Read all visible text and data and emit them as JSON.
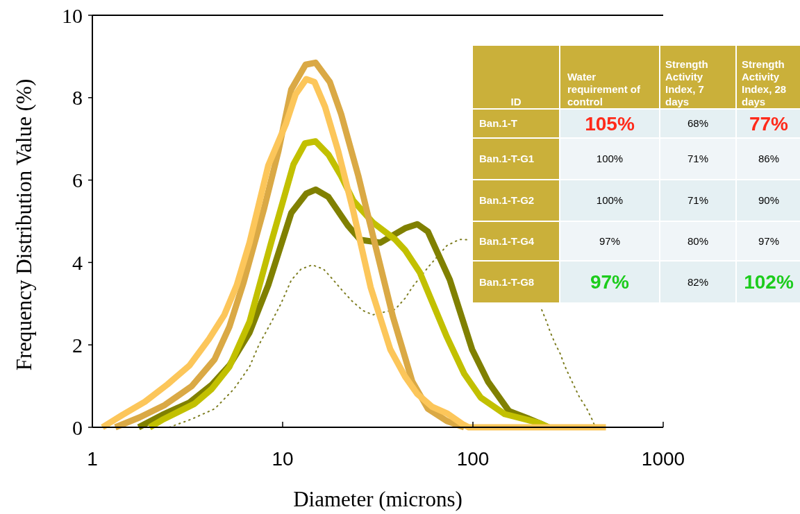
{
  "chart_data": [
    {
      "type": "line",
      "xlabel": "Diameter (microns)",
      "ylabel": "Frequency Distribution Value (%)",
      "log": "x",
      "grid": false,
      "xlim": [
        1,
        1000
      ],
      "xticks": [
        1,
        10,
        100,
        1000
      ],
      "ylim": [
        0,
        10
      ],
      "yticks": [
        0,
        2,
        4,
        6,
        8,
        10
      ],
      "series": [
        {
          "color": "#7d7d20",
          "line_style": "dotted",
          "x": [
            2.54,
            3.33,
            4.4,
            5.55,
            6.7,
            7.5,
            8.6,
            9.8,
            11.1,
            12.5,
            14.3,
            16.4,
            18.5,
            20.5,
            23.2,
            26.5,
            29.8,
            39,
            44,
            48,
            58.5,
            73,
            85,
            95,
            150,
            230,
            243,
            256,
            270,
            288,
            303,
            321,
            342,
            364,
            395,
            423,
            440
          ],
          "values": [
            0,
            0.2,
            0.45,
            0.93,
            1.47,
            2.0,
            2.5,
            3.0,
            3.57,
            3.84,
            3.94,
            3.84,
            3.57,
            3.33,
            3.06,
            2.83,
            2.73,
            2.86,
            3.13,
            3.4,
            3.9,
            4.41,
            4.56,
            4.55,
            null,
            2.85,
            2.58,
            2.29,
            2.04,
            1.78,
            1.5,
            1.25,
            0.98,
            0.72,
            0.47,
            0.19,
            0
          ]
        },
        {
          "color": "#808000",
          "x": [
            1.75,
            2.33,
            3.24,
            4.24,
            5.25,
            6.7,
            8.4,
            11.1,
            13.3,
            14.9,
            17.4,
            22,
            25.6,
            32.6,
            44,
            51,
            58,
            75.6,
            99,
            120,
            155,
            194,
            224,
            250
          ],
          "values": [
            0,
            0.3,
            0.6,
            1.03,
            1.5,
            2.3,
            3.45,
            5.2,
            5.67,
            5.77,
            5.59,
            4.9,
            4.55,
            4.48,
            4.83,
            4.93,
            4.75,
            3.58,
            1.89,
            1.11,
            0.39,
            0.22,
            0.1,
            0
          ]
        },
        {
          "color": "#c2c000",
          "x": [
            2.0,
            2.33,
            3.44,
            4.24,
            5.25,
            6.7,
            8.7,
            11.4,
            13.1,
            14.9,
            17.4,
            20.3,
            23.5,
            29.8,
            39,
            44,
            52.6,
            73,
            90,
            110,
            147,
            194,
            224,
            250
          ],
          "values": [
            0,
            0.18,
            0.57,
            0.93,
            1.47,
            2.56,
            4.48,
            6.38,
            6.89,
            6.94,
            6.62,
            6.1,
            5.5,
            4.97,
            4.56,
            4.3,
            3.76,
            2.19,
            1.3,
            0.72,
            0.32,
            0.18,
            0.1,
            0
          ]
        },
        {
          "color": "#daa945",
          "x": [
            1.32,
            1.77,
            2.4,
            3.33,
            4.39,
            5.25,
            6.24,
            8.0,
            9.5,
            11.1,
            13.2,
            14.9,
            17.7,
            20.3,
            25,
            30.9,
            38,
            48,
            58,
            73,
            90
          ],
          "values": [
            0,
            0.24,
            0.54,
            1.0,
            1.65,
            2.44,
            3.52,
            5.32,
            6.7,
            8.2,
            8.8,
            8.85,
            8.38,
            7.6,
            6.1,
            4.36,
            2.68,
            1.11,
            0.45,
            0.15,
            0
          ]
        },
        {
          "color": "#fcc65a",
          "x": [
            1.13,
            1.44,
            1.89,
            2.48,
            3.24,
            4.1,
            4.94,
            5.74,
            6.7,
            8.4,
            10.4,
            11.7,
            13.3,
            14.7,
            16.7,
            19.6,
            23.5,
            29,
            36.8,
            44,
            51,
            61,
            73,
            88,
            95,
            500
          ],
          "values": [
            0,
            0.3,
            0.62,
            1.04,
            1.5,
            2.14,
            2.73,
            3.45,
            4.48,
            6.35,
            7.36,
            8.08,
            8.45,
            8.38,
            7.78,
            6.7,
            5.25,
            3.4,
            1.89,
            1.23,
            0.81,
            0.5,
            0.34,
            0.08,
            0,
            0
          ]
        }
      ]
    },
    {
      "type": "other",
      "categories": [
        "ID",
        "Water requirement of control",
        "Strength Activity Index, 7 days",
        "Strength Activity Index, 28 days"
      ],
      "y_categories": [
        "Ban.1-T",
        "Ban.1-T-G1",
        "Ban.1-T-G2",
        "Ban.1-T-G4",
        "Ban.1-T-G8"
      ],
      "cell_labels": [
        [
          "105%",
          "68%",
          "77%"
        ],
        [
          "100%",
          "71%",
          "86%"
        ],
        [
          "100%",
          "71%",
          "90%"
        ],
        [
          "97%",
          "80%",
          "97%"
        ],
        [
          "97%",
          "82%",
          "102%"
        ]
      ],
      "colors": [
        [
          "#ff2a1a",
          null,
          "#ff2a1a"
        ],
        [
          null,
          null,
          null
        ],
        [
          null,
          null,
          null
        ],
        [
          null,
          null,
          null
        ],
        [
          "#1ccc1c",
          null,
          "#1ccc1c"
        ]
      ]
    }
  ]
}
